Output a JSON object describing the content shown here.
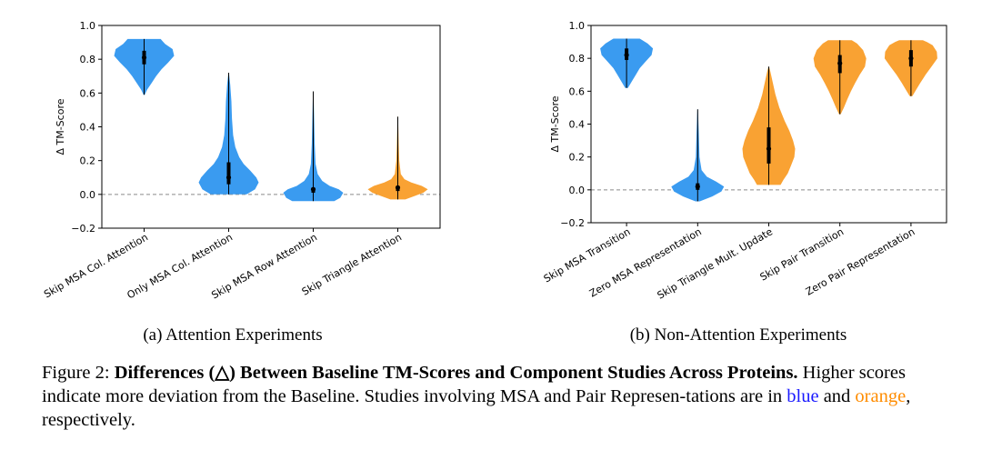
{
  "colors": {
    "msa": "#3a9bf0",
    "pair": "#f9a233",
    "caption_blue": "#1a1aff",
    "caption_orange": "#ff8c00"
  },
  "chart_data": [
    {
      "type": "violin",
      "subcaption": "(a) Attention Experiments",
      "ylabel": "Δ TM-Score",
      "ylim": [
        -0.2,
        1.0
      ],
      "yticks": [
        "−0.2",
        "0.0",
        "0.2",
        "0.4",
        "0.6",
        "0.8",
        "1.0"
      ],
      "reference_line": 0.0,
      "categories": [
        "Skip MSA Col. Attention",
        "Only MSA Col. Attention",
        "Skip MSA Row Attention",
        "Skip Triangle Attention"
      ],
      "series": [
        {
          "group": "msa",
          "min": 0.59,
          "max": 0.92,
          "median": 0.81,
          "q1": 0.77,
          "q3": 0.85,
          "density": [
            [
              0.59,
              0.02
            ],
            [
              0.62,
              0.1
            ],
            [
              0.66,
              0.25
            ],
            [
              0.7,
              0.4
            ],
            [
              0.74,
              0.58
            ],
            [
              0.78,
              0.8
            ],
            [
              0.82,
              1.0
            ],
            [
              0.86,
              0.95
            ],
            [
              0.89,
              0.7
            ],
            [
              0.91,
              0.6
            ],
            [
              0.92,
              0.55
            ]
          ]
        },
        {
          "group": "msa",
          "min": 0.0,
          "max": 0.72,
          "median": 0.1,
          "q1": 0.06,
          "q3": 0.19,
          "density": [
            [
              0.0,
              0.6
            ],
            [
              0.03,
              0.88
            ],
            [
              0.07,
              1.0
            ],
            [
              0.1,
              0.92
            ],
            [
              0.14,
              0.72
            ],
            [
              0.18,
              0.5
            ],
            [
              0.22,
              0.35
            ],
            [
              0.28,
              0.22
            ],
            [
              0.35,
              0.15
            ],
            [
              0.45,
              0.11
            ],
            [
              0.55,
              0.09
            ],
            [
              0.65,
              0.05
            ],
            [
              0.72,
              0.01
            ]
          ]
        },
        {
          "group": "msa",
          "min": -0.04,
          "max": 0.61,
          "median": 0.03,
          "q1": 0.01,
          "q3": 0.04,
          "density": [
            [
              -0.04,
              0.7
            ],
            [
              -0.02,
              0.9
            ],
            [
              0.01,
              1.0
            ],
            [
              0.03,
              0.85
            ],
            [
              0.05,
              0.55
            ],
            [
              0.08,
              0.3
            ],
            [
              0.12,
              0.15
            ],
            [
              0.18,
              0.08
            ],
            [
              0.3,
              0.05
            ],
            [
              0.45,
              0.03
            ],
            [
              0.61,
              0.01
            ]
          ]
        },
        {
          "group": "pair",
          "min": -0.03,
          "max": 0.46,
          "median": 0.04,
          "q1": 0.02,
          "q3": 0.05,
          "density": [
            [
              -0.03,
              0.25
            ],
            [
              -0.01,
              0.55
            ],
            [
              0.01,
              0.85
            ],
            [
              0.03,
              1.0
            ],
            [
              0.05,
              0.8
            ],
            [
              0.07,
              0.45
            ],
            [
              0.09,
              0.22
            ],
            [
              0.12,
              0.1
            ],
            [
              0.2,
              0.05
            ],
            [
              0.3,
              0.03
            ],
            [
              0.46,
              0.01
            ]
          ]
        }
      ]
    },
    {
      "type": "violin",
      "subcaption": "(b) Non-Attention Experiments",
      "ylabel": "Δ TM-Score",
      "ylim": [
        -0.2,
        1.0
      ],
      "yticks": [
        "−0.2",
        "0.0",
        "0.2",
        "0.4",
        "0.6",
        "0.8",
        "1.0"
      ],
      "reference_line": 0.0,
      "categories": [
        "Skip MSA Transition",
        "Zero MSA Representation",
        "Skip Triangle Mult. Update",
        "Skip Pair Transition",
        "Zero Pair Representation"
      ],
      "series": [
        {
          "group": "msa",
          "min": 0.62,
          "max": 0.92,
          "median": 0.82,
          "q1": 0.79,
          "q3": 0.86,
          "density": [
            [
              0.62,
              0.05
            ],
            [
              0.66,
              0.2
            ],
            [
              0.7,
              0.35
            ],
            [
              0.74,
              0.5
            ],
            [
              0.78,
              0.72
            ],
            [
              0.82,
              0.95
            ],
            [
              0.86,
              1.0
            ],
            [
              0.89,
              0.8
            ],
            [
              0.91,
              0.6
            ],
            [
              0.92,
              0.5
            ]
          ]
        },
        {
          "group": "msa",
          "min": -0.07,
          "max": 0.49,
          "median": 0.02,
          "q1": 0.0,
          "q3": 0.04,
          "density": [
            [
              -0.07,
              0.08
            ],
            [
              -0.04,
              0.55
            ],
            [
              -0.01,
              0.9
            ],
            [
              0.02,
              1.0
            ],
            [
              0.05,
              0.7
            ],
            [
              0.08,
              0.35
            ],
            [
              0.12,
              0.15
            ],
            [
              0.2,
              0.07
            ],
            [
              0.35,
              0.04
            ],
            [
              0.49,
              0.01
            ]
          ]
        },
        {
          "group": "pair",
          "min": 0.03,
          "max": 0.75,
          "median": 0.25,
          "q1": 0.16,
          "q3": 0.38,
          "density": [
            [
              0.03,
              0.45
            ],
            [
              0.06,
              0.55
            ],
            [
              0.1,
              0.72
            ],
            [
              0.15,
              0.85
            ],
            [
              0.2,
              0.97
            ],
            [
              0.25,
              1.0
            ],
            [
              0.3,
              0.92
            ],
            [
              0.36,
              0.78
            ],
            [
              0.42,
              0.6
            ],
            [
              0.5,
              0.4
            ],
            [
              0.58,
              0.25
            ],
            [
              0.66,
              0.14
            ],
            [
              0.72,
              0.06
            ],
            [
              0.75,
              0.01
            ]
          ]
        },
        {
          "group": "pair",
          "min": 0.46,
          "max": 0.91,
          "median": 0.77,
          "q1": 0.71,
          "q3": 0.82,
          "density": [
            [
              0.46,
              0.03
            ],
            [
              0.5,
              0.15
            ],
            [
              0.55,
              0.28
            ],
            [
              0.6,
              0.42
            ],
            [
              0.65,
              0.58
            ],
            [
              0.7,
              0.75
            ],
            [
              0.75,
              0.95
            ],
            [
              0.8,
              1.0
            ],
            [
              0.85,
              0.88
            ],
            [
              0.89,
              0.65
            ],
            [
              0.91,
              0.45
            ]
          ]
        },
        {
          "group": "pair",
          "min": 0.57,
          "max": 0.91,
          "median": 0.8,
          "q1": 0.75,
          "q3": 0.85,
          "density": [
            [
              0.57,
              0.05
            ],
            [
              0.61,
              0.2
            ],
            [
              0.65,
              0.35
            ],
            [
              0.7,
              0.55
            ],
            [
              0.75,
              0.78
            ],
            [
              0.8,
              1.0
            ],
            [
              0.84,
              0.98
            ],
            [
              0.88,
              0.82
            ],
            [
              0.9,
              0.6
            ],
            [
              0.91,
              0.45
            ]
          ]
        }
      ]
    }
  ],
  "caption": {
    "prefix": "Figure 2: ",
    "bold": "Differences (△) Between Baseline TM-Scores and Component Studies Across Proteins.",
    "text1": " Higher scores indicate more deviation from the Baseline. Studies involving MSA and Pair Represen-tations are in ",
    "blue_word": "blue",
    "text2": " and ",
    "orange_word": "orange",
    "text3": ", respectively."
  }
}
